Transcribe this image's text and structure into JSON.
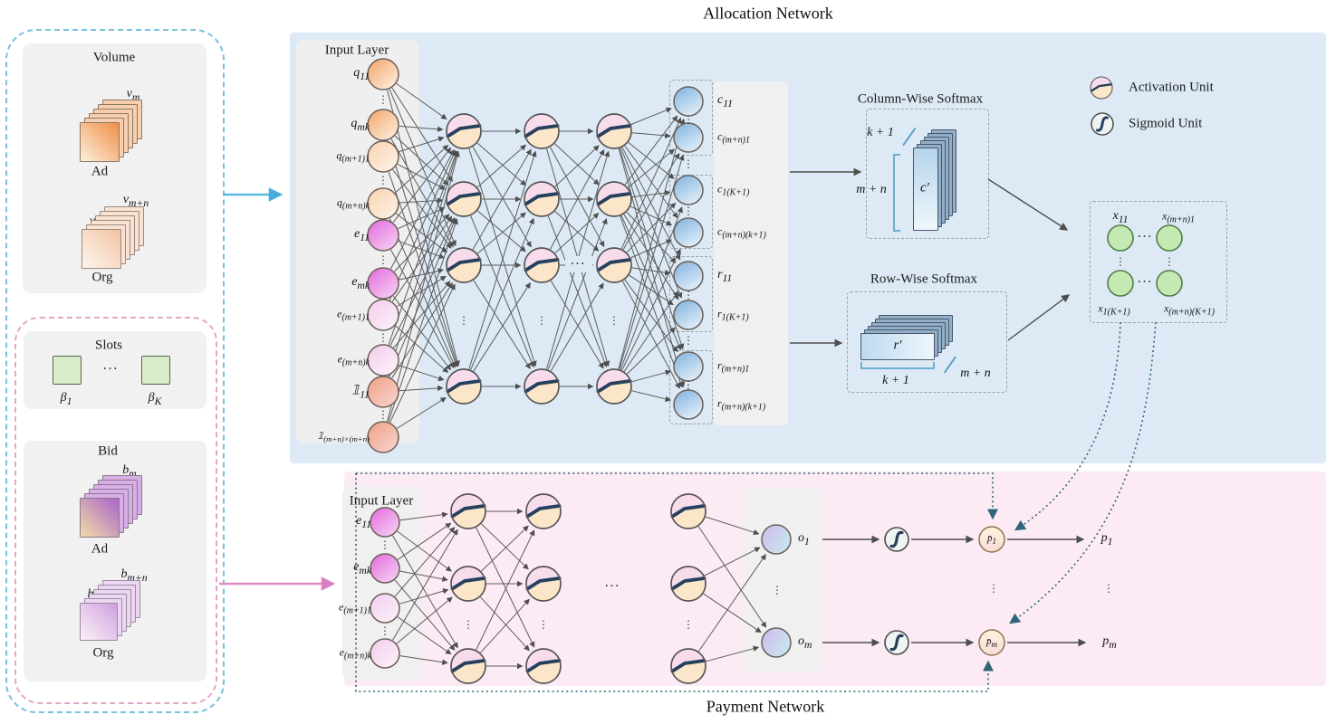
{
  "figure": {
    "allocation_title": "Allocation Network",
    "payment_title": "Payment Network"
  },
  "left_panel": {
    "volume": {
      "title": "Volume",
      "ad": {
        "back_label": "v_{m}",
        "front_label": "v_{1}",
        "caption": "Ad"
      },
      "org": {
        "back_label": "v_{m+n}",
        "front_label": "v_{m+1}",
        "caption": "Org"
      }
    },
    "slots": {
      "title": "Slots",
      "first_label": "β_{1}",
      "last_label": "β_{K}"
    },
    "bid": {
      "title": "Bid",
      "ad": {
        "back_label": "b_{m}",
        "front_label": "b_{1}",
        "caption": "Ad"
      },
      "org": {
        "back_label": "b_{m+n}",
        "front_label": "b_{m+1}",
        "caption": "Org"
      }
    }
  },
  "allocation": {
    "input_layer_title": "Input Layer",
    "input_labels": [
      "q_{11}",
      "q_{mk}",
      "q_{(m+1)1}",
      "q_{(m+n)k}",
      "e_{11}",
      "e_{mk}",
      "e_{(m+1)1}",
      "e_{(m+n)k}",
      "𝟙_{11}",
      "𝟙_{(m+n)×(m+n)}"
    ],
    "output_labels": [
      "c_{11}",
      "c_{(m+n)1}",
      "c_{1(K+1)}",
      "c_{(m+n)(k+1)}",
      "r_{11}",
      "r_{1(K+1)}",
      "r_{(m+n)1}",
      "r_{(m+n)(k+1)}"
    ],
    "column_softmax": {
      "title": "Column-Wise Softmax",
      "rows_label": "m + n",
      "depth_label": "k + 1",
      "matrix_label": "c′"
    },
    "row_softmax": {
      "title": "Row-Wise Softmax",
      "cols_label": "k + 1",
      "depth_label": "m + n",
      "matrix_label": "r′"
    },
    "x_box_labels": [
      "x_{11}",
      "x_{(m+n)1}",
      "x_{1(K+1)}",
      "x_{(m+n)(K+1)}"
    ]
  },
  "legend": {
    "activation_label": "Activation Unit",
    "sigmoid_label": "Sigmoid Unit"
  },
  "payment": {
    "input_layer_title": "Input Layer",
    "input_labels": [
      "e_{11}",
      "e_{mk}",
      "e_{(m+1)1}",
      "e_{(m+n)k}"
    ],
    "o_labels": [
      "o_{1}",
      "o_{m}"
    ],
    "pbar_labels": [
      "p̄_{1}",
      "p̄_{m}"
    ],
    "p_labels": [
      "p_{1}",
      "p_{m}"
    ]
  },
  "misc": {
    "dots_h": "···",
    "dots_v": "⋮",
    "dots_diag": "⋰"
  },
  "palette": {
    "allocation_bg": "#ddeaf5",
    "payment_bg": "#fcebf4",
    "panel_gray": "#f1f1f1",
    "edge": "#5c5c5c",
    "cyan_arrow": "#5cb8e4",
    "pink_arrow": "#e18cc6",
    "teal_dotted": "#2f6479",
    "outer_box_blue": "#74c3de",
    "inner_box_pink": "#e3a6c9",
    "node_blue": "#84b5e0",
    "node_green": "#c4e9b2",
    "node_orange": "#f3a469",
    "node_magenta": "#e468de"
  }
}
